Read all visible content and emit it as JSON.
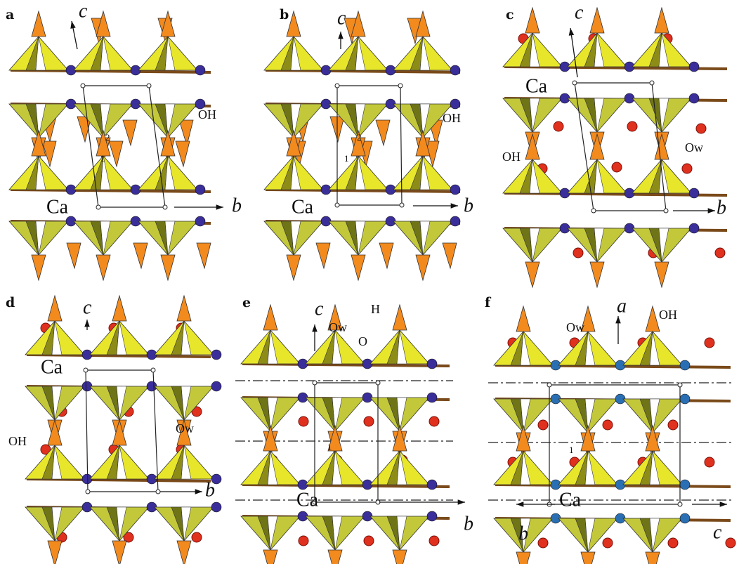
{
  "panels": [
    {
      "label": "a",
      "labels": [
        "c",
        "b",
        "OH",
        "Ca",
        "2",
        "1"
      ]
    },
    {
      "label": "b",
      "labels": [
        "c",
        "b",
        "OH",
        "Ca",
        "2",
        "1"
      ]
    },
    {
      "label": "c",
      "labels": [
        "c",
        "b",
        "Ca",
        "OH",
        "Ow"
      ]
    },
    {
      "label": "d",
      "labels": [
        "c",
        "b",
        "Ca",
        "OH",
        "Ow"
      ]
    },
    {
      "label": "e",
      "labels": [
        "c",
        "Ow",
        "H",
        "O",
        "b",
        "Ca",
        "1"
      ]
    },
    {
      "label": "f",
      "labels": [
        "a",
        "Ow",
        "OH",
        "b",
        "c",
        "Ca",
        "1"
      ]
    }
  ]
}
